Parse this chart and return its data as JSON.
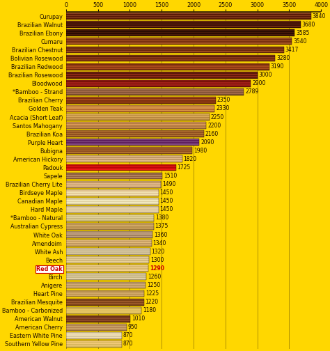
{
  "categories": [
    "Curupay",
    "Brazilian Walnut",
    "Brazilian Ebony",
    "Cumaru",
    "Brazilian Chestnut",
    "Bolivian Rosewood",
    "Brazilian Redwood",
    "Brazilian Rosewood",
    "Bloodwood",
    "*Bamboo - Strand",
    "Brazilian Cherry",
    "Golden Teak",
    "Acacia (Short Leaf)",
    "Santos Mahogany",
    "Brazilian Koa",
    "Purple Heart",
    "Bubigna",
    "American Hickory",
    "Padouk",
    "Sapele",
    "Brazilian Cherry Lite",
    "Birdseye Maple",
    "Canadian Maple",
    "Hard Maple",
    "*Bamboo - Natural",
    "Australian Cypress",
    "White Oak",
    "Amendoim",
    "White Ash",
    "Beech",
    "Red Oak",
    "Birch",
    "Anigere",
    "Heart Pine",
    "Brazilian Mesquite",
    "Bamboo - Carbonized",
    "American Walnut",
    "American Cherry",
    "Eastern White Pine",
    "Southern Yellow Pine"
  ],
  "values": [
    3840,
    3680,
    3585,
    3540,
    3417,
    3280,
    3190,
    3000,
    2900,
    2789,
    2350,
    2330,
    2250,
    2200,
    2160,
    2090,
    1980,
    1820,
    1725,
    1510,
    1490,
    1450,
    1450,
    1450,
    1380,
    1375,
    1360,
    1340,
    1320,
    1300,
    1290,
    1260,
    1250,
    1225,
    1220,
    1180,
    1010,
    950,
    870,
    870
  ],
  "bar_colors_base": [
    "#5A1A08",
    "#3D1005",
    "#2A0C03",
    "#7A3010",
    "#6B2A0D",
    "#5A2008",
    "#7A2E0C",
    "#5A1808",
    "#7A1208",
    "#7B4E30",
    "#7A2E0C",
    "#B86830",
    "#B88840",
    "#B07840",
    "#905020",
    "#602060",
    "#905020",
    "#C09868",
    "#BB0808",
    "#906040",
    "#C09868",
    "#DEC090",
    "#DED0A0",
    "#D0BC90",
    "#C8B880",
    "#B89050",
    "#A08060",
    "#C09860",
    "#C8B890",
    "#D0B880",
    "#D8B870",
    "#C8B888",
    "#B89860",
    "#B89050",
    "#7A4018",
    "#D0B050",
    "#6A3018",
    "#B08050",
    "#D8C8A0",
    "#D8B860"
  ],
  "bar_colors_stripe": [
    "#8B4020",
    "#6B2A10",
    "#4A1A08",
    "#A05020",
    "#9B4A1D",
    "#8B3818",
    "#A84A1C",
    "#8B2818",
    "#A02018",
    "#A06848",
    "#A84A1C",
    "#D89848",
    "#D8A858",
    "#D89858",
    "#B07030",
    "#804880",
    "#B07030",
    "#E0B888",
    "#EE1818",
    "#B08060",
    "#E0B888",
    "#F0E0B0",
    "#F0E8C0",
    "#E8D4A8",
    "#E0D098",
    "#D0A868",
    "#C0A080",
    "#E0B878",
    "#E0D0A8",
    "#E8D098",
    "#F0D090",
    "#E0D0A8",
    "#D0A878",
    "#D0A868",
    "#9A5828",
    "#E8C868",
    "#8A4828",
    "#C8A068",
    "#F0E0B8",
    "#F0C878"
  ],
  "highlight_index": 30,
  "highlight_label_color": "#CC0000",
  "background_color": "#FFD700",
  "xlim": [
    0,
    4000
  ],
  "xticks": [
    0,
    500,
    1000,
    1500,
    2000,
    2500,
    3000,
    3500,
    4000
  ],
  "label_fontsize": 5.8,
  "value_fontsize": 5.5,
  "bar_height": 0.82
}
